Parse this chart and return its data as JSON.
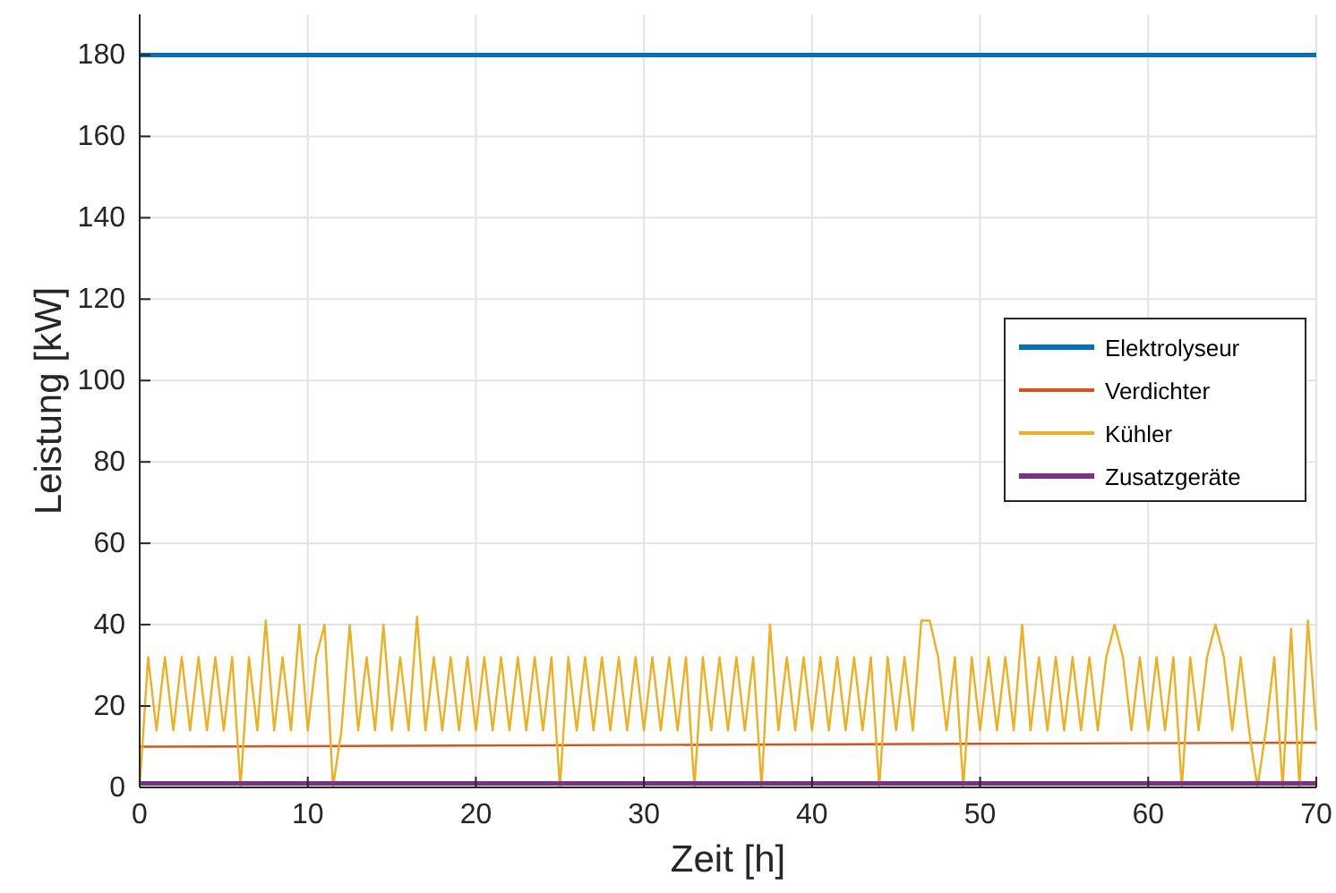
{
  "chart_data": {
    "type": "line",
    "xlabel": "Zeit [h]",
    "ylabel": "Leistung [kW]",
    "xlim": [
      0,
      70
    ],
    "ylim": [
      0,
      190
    ],
    "xticks": [
      0,
      10,
      20,
      30,
      40,
      50,
      60,
      70
    ],
    "yticks": [
      0,
      20,
      40,
      60,
      80,
      100,
      120,
      140,
      160,
      180
    ],
    "grid": true,
    "legend": "right",
    "line_style": "solid",
    "series": [
      {
        "name": "Elektrolyseur",
        "color": "#0072bd",
        "x": [
          0,
          70
        ],
        "values": [
          180,
          180
        ]
      },
      {
        "name": "Verdichter",
        "color": "#d95319",
        "x": [
          0,
          70
        ],
        "values": [
          10,
          11
        ]
      },
      {
        "name": "Kühler",
        "color": "#edb120",
        "x": [
          0,
          0.5,
          1,
          1.5,
          2,
          2.5,
          3,
          3.5,
          4,
          4.5,
          5,
          5.5,
          6,
          6.5,
          7,
          7.5,
          8,
          8.5,
          9,
          9.5,
          10,
          10.5,
          11,
          11.5,
          12,
          12.5,
          13,
          13.5,
          14,
          14.5,
          15,
          15.5,
          16,
          16.5,
          17,
          17.5,
          18,
          18.5,
          19,
          19.5,
          20,
          20.5,
          21,
          21.5,
          22,
          22.5,
          23,
          23.5,
          24,
          24.5,
          25,
          25.5,
          26,
          26.5,
          27,
          27.5,
          28,
          28.5,
          29,
          29.5,
          30,
          30.5,
          31,
          31.5,
          32,
          32.5,
          33,
          33.5,
          34,
          34.5,
          35,
          35.5,
          36,
          36.5,
          37,
          37.5,
          38,
          38.5,
          39,
          39.5,
          40,
          40.5,
          41,
          41.5,
          42,
          42.5,
          43,
          43.5,
          44,
          44.5,
          45,
          45.5,
          46,
          46.5,
          47,
          47.5,
          48,
          48.5,
          49,
          49.5,
          50,
          50.5,
          51,
          51.5,
          52,
          52.5,
          53,
          53.5,
          54,
          54.5,
          55,
          55.5,
          56,
          56.5,
          57,
          57.5,
          58,
          58.5,
          59,
          59.5,
          60,
          60.5,
          61,
          61.5,
          62,
          62.5,
          63,
          63.5,
          64,
          64.5,
          65,
          65.5,
          66,
          66.5,
          67,
          67.5,
          68,
          68.5,
          69,
          69.5,
          70
        ],
        "values": [
          0,
          32,
          14,
          32,
          14,
          32,
          14,
          32,
          14,
          32,
          14,
          32,
          0,
          32,
          14,
          41,
          14,
          32,
          14,
          40,
          14,
          32,
          40,
          0,
          14,
          40,
          14,
          32,
          14,
          40,
          14,
          32,
          14,
          42,
          14,
          32,
          14,
          32,
          14,
          32,
          14,
          32,
          14,
          32,
          14,
          32,
          14,
          32,
          14,
          32,
          0,
          32,
          14,
          32,
          14,
          32,
          14,
          32,
          14,
          32,
          14,
          32,
          14,
          32,
          14,
          32,
          0,
          32,
          14,
          32,
          14,
          32,
          14,
          32,
          0,
          40,
          14,
          32,
          14,
          32,
          14,
          32,
          14,
          32,
          14,
          32,
          14,
          32,
          0,
          32,
          14,
          32,
          14,
          41,
          41,
          32,
          14,
          32,
          0,
          32,
          14,
          32,
          14,
          32,
          14,
          40,
          14,
          32,
          14,
          32,
          14,
          32,
          14,
          32,
          14,
          32,
          40,
          32,
          14,
          32,
          14,
          32,
          14,
          32,
          0,
          32,
          14,
          32,
          40,
          32,
          14,
          32,
          14,
          0,
          14,
          32,
          0,
          39,
          0,
          41,
          14
        ]
      },
      {
        "name": "Zusatzgeräte",
        "color": "#7e2f8e",
        "x": [
          0,
          70
        ],
        "values": [
          1,
          1
        ]
      }
    ]
  }
}
